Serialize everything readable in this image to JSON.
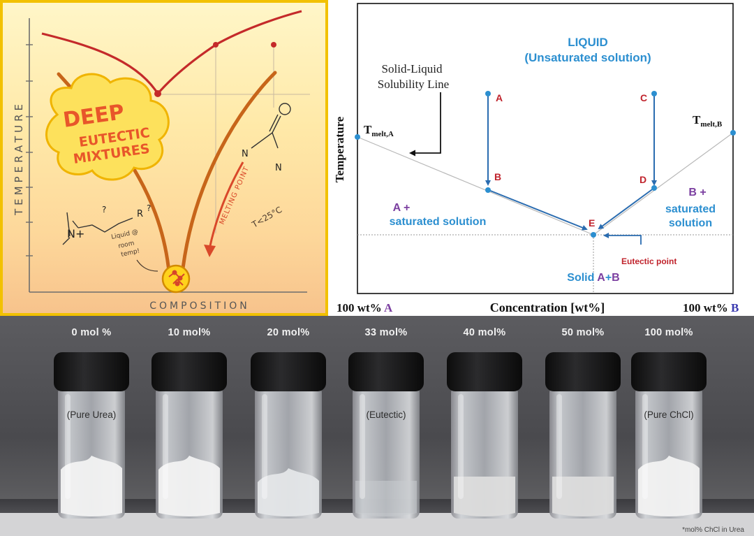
{
  "cartoon": {
    "y_axis_label": "TEMPERATURE",
    "x_axis_label": "COMPOSITION",
    "badge_line1": "DEEP",
    "badge_line2": "EUTECTIC",
    "badge_line3": "MIXTURES",
    "annotation_liquid": "Liquid @\nroom\ntemp!",
    "annotation_melting_point": "MELTING POINT",
    "annotation_temperature": "T<25°C",
    "molecule_left_label": "N+",
    "molecule_left_r": "R",
    "molecule_left_q": "?",
    "molecule_right_n": "N"
  },
  "phase_diagram": {
    "title_line1": "LIQUID",
    "title_line2": "(Unsaturated solution)",
    "callout_line1": "Solid-Liquid",
    "callout_line2": "Solubility Line",
    "tmelt_a": "T",
    "tmelt_a_sub": "melt,A",
    "tmelt_b": "T",
    "tmelt_b_sub": "melt,B",
    "y_axis_label": "Temperature",
    "x_axis_label": "Concentration [wt%]",
    "x_left_label_prefix": "100 wt% ",
    "x_left_label_letter": "A",
    "x_right_label_prefix": "100 wt% ",
    "x_right_label_letter": "B",
    "region_left_line1": "A +",
    "region_left_line2": "saturated solution",
    "region_right_line1": "B +",
    "region_right_line2": "saturated",
    "region_right_line3": "solution",
    "bottom_prefix": "Solid ",
    "bottom_a": "A",
    "bottom_plus": "+",
    "bottom_b": "B",
    "eutectic_label": "Eutectic point",
    "points": [
      {
        "label": "A"
      },
      {
        "label": "B"
      },
      {
        "label": "C"
      },
      {
        "label": "D"
      },
      {
        "label": "E"
      }
    ],
    "colors": {
      "blue": "#2c8fd0",
      "red": "#c0232c",
      "purple": "#7b3fa0",
      "navy": "#1e2e6e",
      "arrow": "#2a6cb0"
    }
  },
  "vials": {
    "items": [
      {
        "concentration": "0 mol %",
        "tag": "(Pure Urea)",
        "content": "white powder"
      },
      {
        "concentration": "10 mol%",
        "tag": "",
        "content": "white powder"
      },
      {
        "concentration": "20 mol%",
        "tag": "",
        "content": "wet powder"
      },
      {
        "concentration": "33 mol%",
        "tag": "(Eutectic)",
        "content": "clear liquid"
      },
      {
        "concentration": "40 mol%",
        "tag": "",
        "content": "slurry"
      },
      {
        "concentration": "50 mol%",
        "tag": "",
        "content": "slurry"
      },
      {
        "concentration": "100 mol%",
        "tag": "(Pure ChCl)",
        "content": "white powder"
      }
    ],
    "footnote": "*mol% ChCl in Urea"
  }
}
